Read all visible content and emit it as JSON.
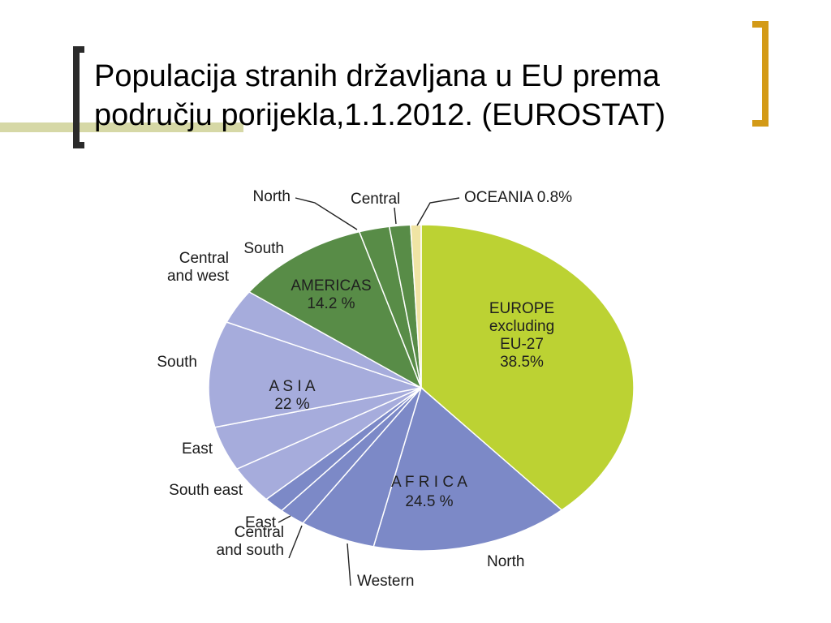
{
  "title_line1": "Populacija stranih državljana u EU prema",
  "title_line2": "području porijekla,1.1.2012. (EUROSTAT)",
  "chart_data": {
    "type": "pie",
    "start_angle_deg": 0,
    "direction": "clockwise",
    "groups": [
      {
        "name": "EUROPE excluding EU-27",
        "label_lines": [
          "EUROPE",
          "excluding",
          "EU-27",
          "38.5%"
        ],
        "value": 38.5,
        "color": "#bcd233"
      },
      {
        "name": "AFRICA",
        "label_lines": [
          "A F R I C A",
          "24.5 %"
        ],
        "value": 24.5,
        "color": "#7c89c7"
      },
      {
        "name": "ASIA",
        "label_lines": [
          "A S I A",
          "22 %"
        ],
        "value": 22.0,
        "color": "#a6acdc"
      },
      {
        "name": "AMERICAS",
        "label_lines": [
          "AMERICAS",
          "14.2 %"
        ],
        "value": 14.2,
        "color": "#588c47"
      },
      {
        "name": "OCEANIA",
        "label_lines": [],
        "value": 0.8,
        "color": "#f0e4a4"
      }
    ],
    "slices": [
      {
        "group": "EUROPE excluding EU-27",
        "label": "",
        "value": 38.5,
        "color": "#bcd233"
      },
      {
        "group": "AFRICA",
        "label": "North",
        "value": 15.1,
        "color": "#7c89c7"
      },
      {
        "group": "AFRICA",
        "label": "Western",
        "value": 5.8,
        "color": "#7c89c7"
      },
      {
        "group": "AFRICA",
        "label": "Central and south",
        "value": 2.0,
        "color": "#7c89c7"
      },
      {
        "group": "AFRICA",
        "label": "East",
        "value": 1.6,
        "color": "#7c89c7"
      },
      {
        "group": "ASIA",
        "label": "South east",
        "value": 3.7,
        "color": "#a6acdc"
      },
      {
        "group": "ASIA",
        "label": "East",
        "value": 4.4,
        "color": "#a6acdc"
      },
      {
        "group": "ASIA",
        "label": "South",
        "value": 10.5,
        "color": "#a6acdc"
      },
      {
        "group": "ASIA",
        "label": "Central and west",
        "value": 3.4,
        "color": "#a6acdc"
      },
      {
        "group": "AMERICAS",
        "label": "South",
        "value": 10.3,
        "color": "#588c47"
      },
      {
        "group": "AMERICAS",
        "label": "Central",
        "value": 2.3,
        "color": "#588c47"
      },
      {
        "group": "AMERICAS",
        "label": "North",
        "value": 1.6,
        "color": "#588c47"
      },
      {
        "group": "OCEANIA",
        "label": "OCEANIA 0.8%",
        "value": 0.8,
        "color": "#f0e4a4"
      }
    ]
  }
}
